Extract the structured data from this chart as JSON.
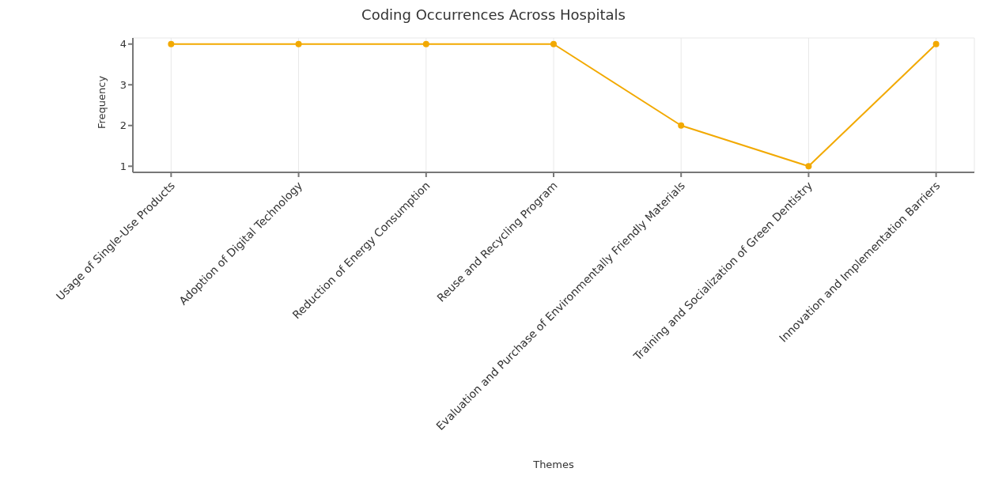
{
  "chart_data": {
    "type": "line",
    "title": "Coding Occurrences Across Hospitals",
    "xlabel": "Themes",
    "ylabel": "Frequency",
    "categories": [
      "Usage of Single-Use Products",
      "Adoption of Digital Technology",
      "Reduction of Energy Consumption",
      "Reuse and Recycling Program",
      "Evaluation and Purchase of Environmentally Friendly Materials",
      "Training and Socialization of Green Dentistry",
      "Innovation and Implementation Barriers"
    ],
    "series": [
      {
        "color": "#f2a900",
        "values": [
          4,
          4,
          4,
          4,
          2,
          1,
          4
        ]
      }
    ],
    "ylim": [
      0.85,
      4.15
    ],
    "yticks": [
      1,
      2,
      3,
      4
    ],
    "grid": true,
    "marker": "circle",
    "line_style": "solid"
  }
}
